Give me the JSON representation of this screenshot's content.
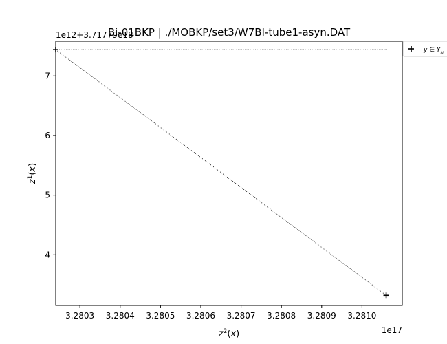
{
  "chart_data": {
    "type": "scatter",
    "title": "Bi-01BKP | ./MOBKP/set3/W7BI-tube1-asyn.DAT",
    "xlabel": "z²(x)",
    "ylabel": "z¹(x)",
    "x_offset_label": "1e17",
    "y_offset_label": "1e12+3.71779e18",
    "xlim": [
      3.28024,
      3.2811
    ],
    "ylim": [
      3.15,
      7.58
    ],
    "x_ticks": [
      3.2803,
      3.2804,
      3.2805,
      3.2806,
      3.2807,
      3.2808,
      3.2809,
      3.281
    ],
    "x_tick_labels": [
      "3.2803",
      "3.2804",
      "3.2805",
      "3.2806",
      "3.2807",
      "3.2808",
      "3.2809",
      "3.2810"
    ],
    "y_ticks": [
      4,
      5,
      6,
      7
    ],
    "y_tick_labels": [
      "4",
      "5",
      "6",
      "7"
    ],
    "grid": false,
    "legend_position": "outside-top-right",
    "series": [
      {
        "name": "y ∈ Y_N",
        "marker": "plus",
        "color": "#000000",
        "x": [
          3.28024,
          3.28106
        ],
        "y": [
          7.44,
          3.32
        ]
      }
    ],
    "connector_path": {
      "style": "dotted",
      "color": "#000000",
      "x": [
        3.28024,
        3.28106,
        3.28106,
        3.28024
      ],
      "y": [
        7.44,
        7.44,
        3.32,
        7.44
      ]
    },
    "corner_marks": [
      {
        "x": 3.28106,
        "y": 7.44
      }
    ]
  }
}
